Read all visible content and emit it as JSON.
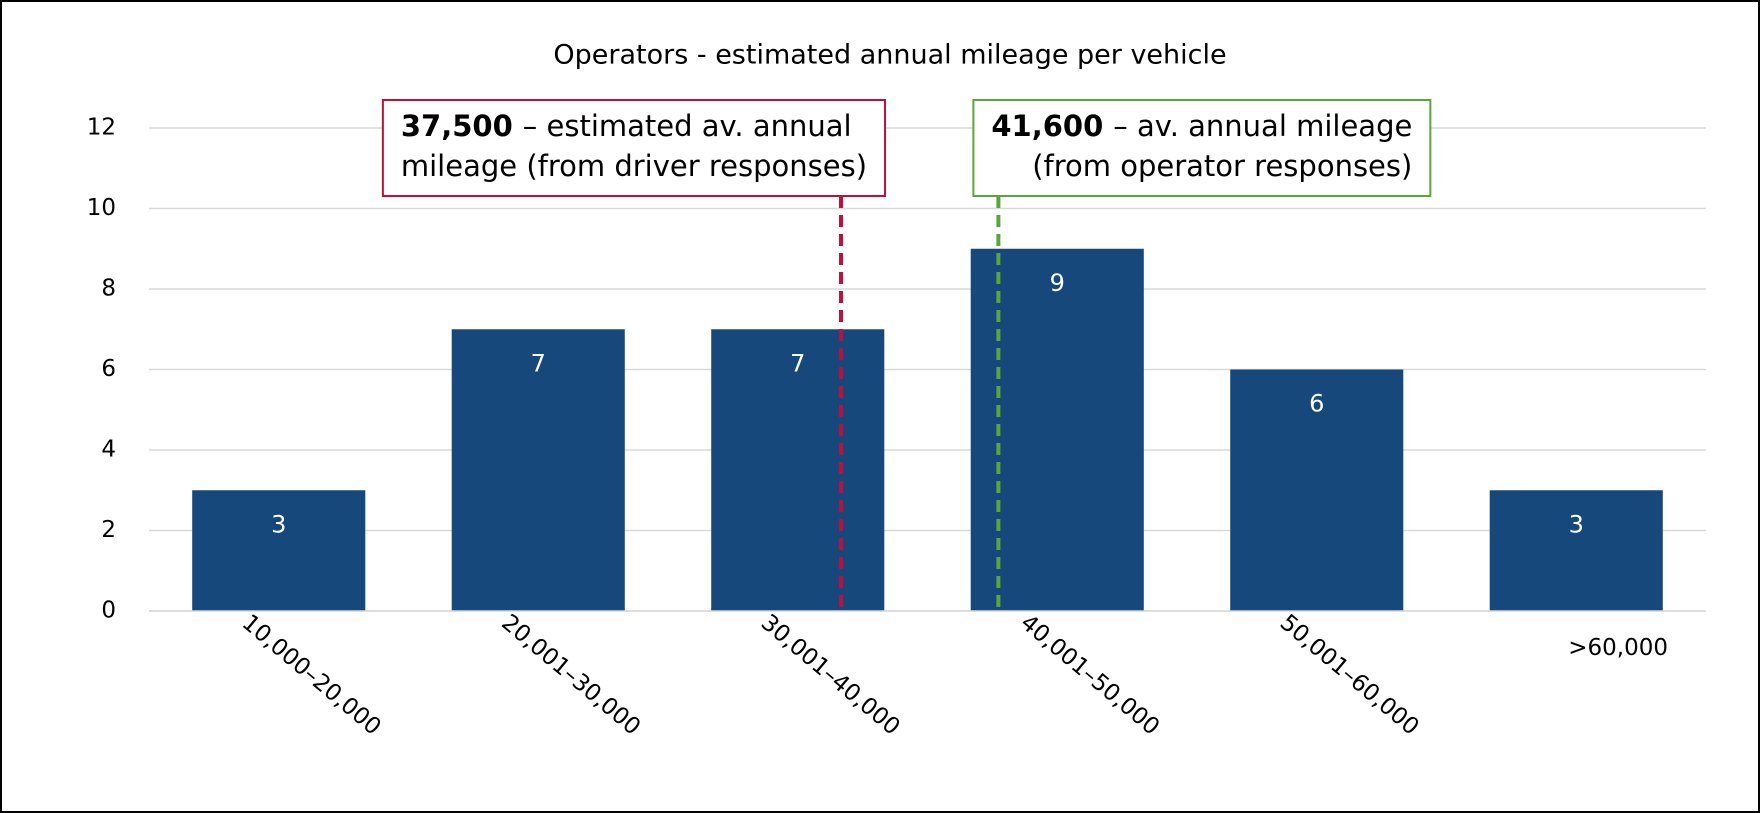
{
  "chart_data": {
    "type": "bar",
    "title": "Operators - estimated annual mileage per vehicle",
    "categories": [
      "10,000–20,000",
      "20,001–30,000",
      "30,001–40,000",
      "40,001–50,000",
      "50,001–60,000",
      ">60,000"
    ],
    "values": [
      3,
      7,
      7,
      9,
      6,
      3
    ],
    "color": "#17487b",
    "ylim": [
      0,
      12
    ],
    "yticks": [
      0,
      2,
      4,
      6,
      8,
      10,
      12
    ],
    "grid": true,
    "annotations": [
      {
        "value": {
          "value": 37500,
          "label": "37,500"
        },
        "lines": [
          "– estimated av. annual",
          "mileage (from driver responses)"
        ],
        "color": "#c0103a"
      },
      {
        "value": {
          "value": 41600,
          "label": "41,600"
        },
        "lines": [
          "– av. annual mileage",
          "(from operator responses)"
        ],
        "color": "#5aa63c"
      }
    ]
  }
}
